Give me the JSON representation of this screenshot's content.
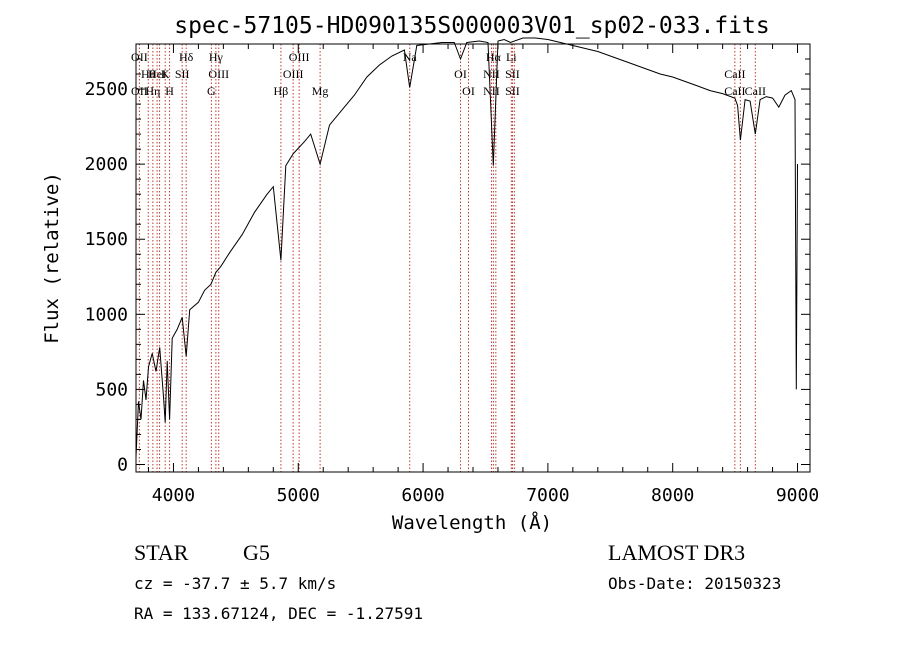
{
  "chart_data": {
    "type": "line",
    "title": "spec-57105-HD090135S000003V01_sp02-033.fits",
    "xlabel": "Wavelength (Å)",
    "ylabel": "Flux (relative)",
    "xlim": [
      3700,
      9100
    ],
    "ylim": [
      -50,
      2800
    ],
    "x_ticks": [
      4000,
      5000,
      6000,
      7000,
      8000,
      9000
    ],
    "y_ticks": [
      0,
      500,
      1000,
      1500,
      2000,
      2500
    ],
    "grid": false,
    "series": [
      {
        "color": "#000000",
        "x": [
          3700,
          3720,
          3740,
          3760,
          3780,
          3800,
          3830,
          3860,
          3890,
          3920,
          3934,
          3950,
          3969,
          3990,
          4030,
          4070,
          4102,
          4130,
          4200,
          4250,
          4300,
          4340,
          4380,
          4450,
          4550,
          4650,
          4750,
          4800,
          4861,
          4900,
          4960,
          5050,
          5100,
          5175,
          5250,
          5350,
          5450,
          5550,
          5650,
          5750,
          5850,
          5893,
          5950,
          6050,
          6150,
          6250,
          6300,
          6350,
          6450,
          6520,
          6563,
          6600,
          6650,
          6700,
          6800,
          6900,
          7000,
          7100,
          7200,
          7300,
          7400,
          7500,
          7600,
          7700,
          7800,
          7900,
          8000,
          8100,
          8200,
          8300,
          8400,
          8498,
          8520,
          8542,
          8580,
          8620,
          8662,
          8700,
          8750,
          8800,
          8850,
          8900,
          8950,
          8980,
          8990,
          9000
        ],
        "y": [
          50,
          420,
          300,
          560,
          430,
          650,
          740,
          620,
          780,
          450,
          280,
          690,
          300,
          840,
          900,
          980,
          720,
          1030,
          1080,
          1160,
          1200,
          1280,
          1320,
          1410,
          1530,
          1680,
          1800,
          1850,
          1360,
          1990,
          2070,
          2150,
          2200,
          2000,
          2260,
          2360,
          2460,
          2580,
          2660,
          2720,
          2760,
          2510,
          2790,
          2800,
          2810,
          2810,
          2700,
          2810,
          2820,
          2810,
          1990,
          2820,
          2830,
          2810,
          2840,
          2840,
          2830,
          2810,
          2790,
          2770,
          2750,
          2720,
          2690,
          2660,
          2630,
          2600,
          2580,
          2550,
          2520,
          2490,
          2470,
          2440,
          2390,
          2160,
          2430,
          2420,
          2200,
          2430,
          2450,
          2440,
          2380,
          2460,
          2490,
          2430,
          500,
          2000
        ]
      }
    ],
    "lines": [
      {
        "x": 3727,
        "top": "OII",
        "bottom": "OII"
      },
      {
        "x": 3798,
        "top": "Hθ",
        "bottom": ""
      },
      {
        "x": 3835,
        "top": "",
        "bottom": "Hη"
      },
      {
        "x": 3869,
        "top": "HeI",
        "bottom": ""
      },
      {
        "x": 3889,
        "top": "",
        "bottom": ""
      },
      {
        "x": 3934,
        "top": "K",
        "bottom": ""
      },
      {
        "x": 3969,
        "top": "",
        "bottom": "H"
      },
      {
        "x": 4070,
        "top": "SII",
        "bottom": ""
      },
      {
        "x": 4102,
        "top": "Hδ",
        "bottom": ""
      },
      {
        "x": 4304,
        "top": "",
        "bottom": "G"
      },
      {
        "x": 4340,
        "top": "Hγ",
        "bottom": ""
      },
      {
        "x": 4363,
        "top": "OIII",
        "bottom": ""
      },
      {
        "x": 4861,
        "top": "",
        "bottom": "Hβ"
      },
      {
        "x": 4959,
        "top": "OIII",
        "bottom": ""
      },
      {
        "x": 5007,
        "top": "OIII",
        "bottom": ""
      },
      {
        "x": 5175,
        "top": "",
        "bottom": "Mg"
      },
      {
        "x": 5893,
        "top": "Na",
        "bottom": ""
      },
      {
        "x": 6300,
        "top": "OI",
        "bottom": ""
      },
      {
        "x": 6364,
        "top": "",
        "bottom": "OI"
      },
      {
        "x": 6548,
        "top": "NII",
        "bottom": "NII"
      },
      {
        "x": 6563,
        "top": "Hα",
        "bottom": ""
      },
      {
        "x": 6583,
        "top": "",
        "bottom": ""
      },
      {
        "x": 6707,
        "top": "Li",
        "bottom": ""
      },
      {
        "x": 6716,
        "top": "SII",
        "bottom": "SII"
      },
      {
        "x": 6731,
        "top": "",
        "bottom": ""
      },
      {
        "x": 8498,
        "top": "CaII",
        "bottom": "CaII"
      },
      {
        "x": 8542,
        "top": "",
        "bottom": ""
      },
      {
        "x": 8662,
        "top": "",
        "bottom": "CaII"
      }
    ]
  },
  "info": {
    "object_class": "STAR",
    "subclass": "G5",
    "survey": "LAMOST DR3",
    "cz": "cz = -37.7 ± 5.7 km/s",
    "obs_date": "Obs-Date: 20150323",
    "coords": "RA = 133.67124, DEC =  -1.27591"
  }
}
